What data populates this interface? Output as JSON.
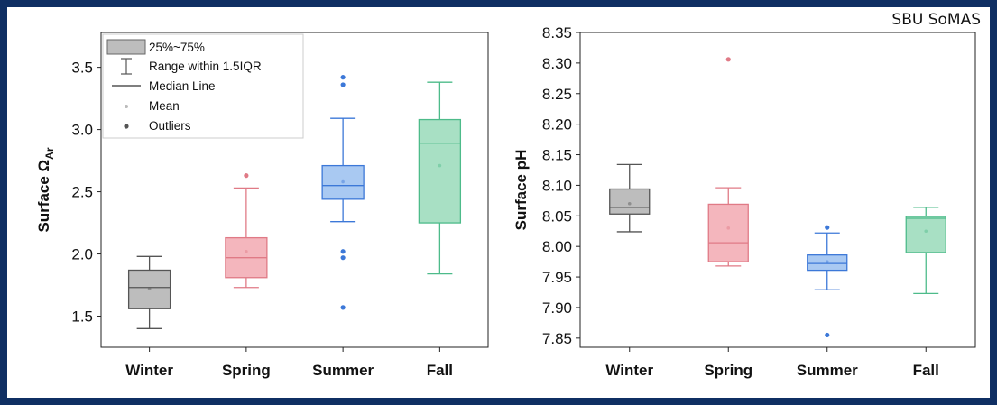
{
  "watermark": "SBU SoMAS",
  "legend": {
    "box": "25%~75%",
    "range": "Range within 1.5IQR",
    "median": "Median Line",
    "mean": "Mean",
    "outliers": "Outliers"
  },
  "chart_data": [
    {
      "type": "box",
      "xlabel": "",
      "ylabel": "Surface Ω_Ar",
      "ylabel_parts": {
        "prefix": "Surface Ω",
        "subscript": "Ar"
      },
      "ylim": [
        1.25,
        3.78
      ],
      "yticks": [
        "1.5",
        "2.0",
        "2.5",
        "3.0",
        "3.5"
      ],
      "grid": false,
      "legend_position": "top-left",
      "categories": [
        "Winter",
        "Spring",
        "Summer",
        "Fall"
      ],
      "boxes": [
        {
          "category": "Winter",
          "whisker_low": 1.4,
          "q1": 1.56,
          "median": 1.73,
          "q3": 1.87,
          "whisker_high": 1.98,
          "mean": 1.72,
          "outliers": [],
          "color": "#bdbdbd"
        },
        {
          "category": "Spring",
          "whisker_low": 1.73,
          "q1": 1.81,
          "median": 1.97,
          "q3": 2.13,
          "whisker_high": 2.53,
          "mean": 2.02,
          "outliers": [
            2.63
          ],
          "color": "#f4b6bd"
        },
        {
          "category": "Summer",
          "whisker_low": 2.26,
          "q1": 2.44,
          "median": 2.55,
          "q3": 2.71,
          "whisker_high": 3.09,
          "mean": 2.58,
          "outliers": [
            1.57,
            1.97,
            2.02,
            3.36,
            3.42
          ],
          "color": "#a9c9f2"
        },
        {
          "category": "Fall",
          "whisker_low": 1.84,
          "q1": 2.25,
          "median": 2.89,
          "q3": 3.08,
          "whisker_high": 3.38,
          "mean": 2.71,
          "outliers": [],
          "color": "#a8e0c4"
        }
      ]
    },
    {
      "type": "box",
      "xlabel": "",
      "ylabel": "Surface pH",
      "ylim": [
        7.835,
        8.35
      ],
      "yticks": [
        "7.85",
        "7.90",
        "7.95",
        "8.00",
        "8.05",
        "8.10",
        "8.15",
        "8.20",
        "8.25",
        "8.30",
        "8.35"
      ],
      "grid": false,
      "categories": [
        "Winter",
        "Spring",
        "Summer",
        "Fall"
      ],
      "boxes": [
        {
          "category": "Winter",
          "whisker_low": 8.024,
          "q1": 8.053,
          "median": 8.064,
          "q3": 8.094,
          "whisker_high": 8.134,
          "mean": 8.07,
          "outliers": [],
          "color": "#bdbdbd"
        },
        {
          "category": "Spring",
          "whisker_low": 7.968,
          "q1": 7.975,
          "median": 8.006,
          "q3": 8.069,
          "whisker_high": 8.096,
          "mean": 8.03,
          "outliers": [
            8.306
          ],
          "color": "#f4b6bd"
        },
        {
          "category": "Summer",
          "whisker_low": 7.929,
          "q1": 7.961,
          "median": 7.972,
          "q3": 7.986,
          "whisker_high": 8.022,
          "mean": 7.975,
          "outliers": [
            7.855,
            8.031
          ],
          "color": "#a9c9f2"
        },
        {
          "category": "Fall",
          "whisker_low": 7.923,
          "q1": 7.99,
          "median": 8.046,
          "q3": 8.049,
          "whisker_high": 8.064,
          "mean": 8.025,
          "outliers": [],
          "color": "#a8e0c4"
        }
      ]
    }
  ],
  "colors": {
    "background": "#0f2f63",
    "box_edge": {
      "Winter": "#555555",
      "Spring": "#e07a86",
      "Summer": "#3c78d8",
      "Fall": "#4dbb8a"
    }
  }
}
